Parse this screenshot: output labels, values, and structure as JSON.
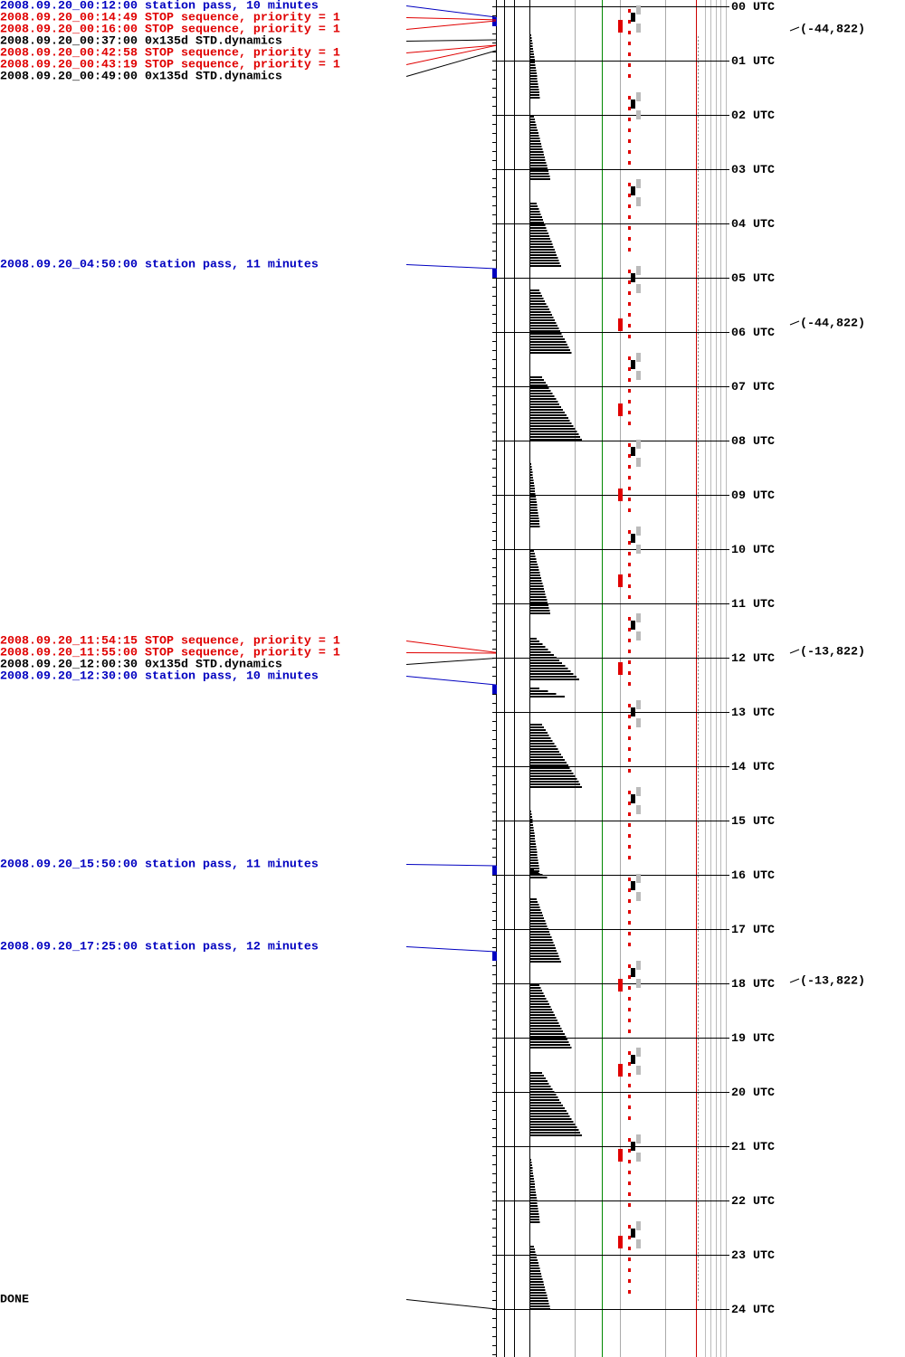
{
  "events": [
    {
      "text": "2008.09.20_00:12:00 station pass, 10 minutes",
      "color": "#0000c0"
    },
    {
      "text": "2008.09.20_00:14:49 STOP sequence, priority = 1",
      "color": "#e00000"
    },
    {
      "text": "2008.09.20_00:16:00 STOP sequence, priority = 1",
      "color": "#e00000"
    },
    {
      "text": "2008.09.20_00:37:00 0x135d STD.dynamics",
      "color": "#000000"
    },
    {
      "text": "2008.09.20_00:42:58 STOP sequence, priority = 1",
      "color": "#e00000"
    },
    {
      "text": "2008.09.20_00:43:19 STOP sequence, priority = 1",
      "color": "#e00000"
    },
    {
      "text": "2008.09.20_00:49:00 0x135d STD.dynamics",
      "color": "#000000"
    },
    {
      "text": "2008.09.20_04:50:00 station pass, 11 minutes",
      "color": "#0000c0"
    },
    {
      "text": "2008.09.20_11:54:15 STOP sequence, priority = 1",
      "color": "#e00000"
    },
    {
      "text": "2008.09.20_11:55:00 STOP sequence, priority = 1",
      "color": "#e00000"
    },
    {
      "text": "2008.09.20_12:00:30 0x135d STD.dynamics",
      "color": "#000000"
    },
    {
      "text": "2008.09.20_12:30:00 station pass, 10 minutes",
      "color": "#0000c0"
    },
    {
      "text": "2008.09.20_15:50:00 station pass, 11 minutes",
      "color": "#0000c0"
    },
    {
      "text": "2008.09.20_17:25:00 station pass, 12 minutes",
      "color": "#0000c0"
    },
    {
      "text": "DONE",
      "color": "#000000"
    }
  ],
  "hours": [
    "00 UTC",
    "01 UTC",
    "02 UTC",
    "03 UTC",
    "04 UTC",
    "05 UTC",
    "06 UTC",
    "07 UTC",
    "08 UTC",
    "09 UTC",
    "10 UTC",
    "11 UTC",
    "12 UTC",
    "13 UTC",
    "14 UTC",
    "15 UTC",
    "16 UTC",
    "17 UTC",
    "18 UTC",
    "19 UTC",
    "20 UTC",
    "21 UTC",
    "22 UTC",
    "23 UTC",
    "24 UTC"
  ],
  "annotations": [
    "(-44,822)",
    "(-44,822)",
    "(-13,822)",
    "(-13,822)"
  ]
}
